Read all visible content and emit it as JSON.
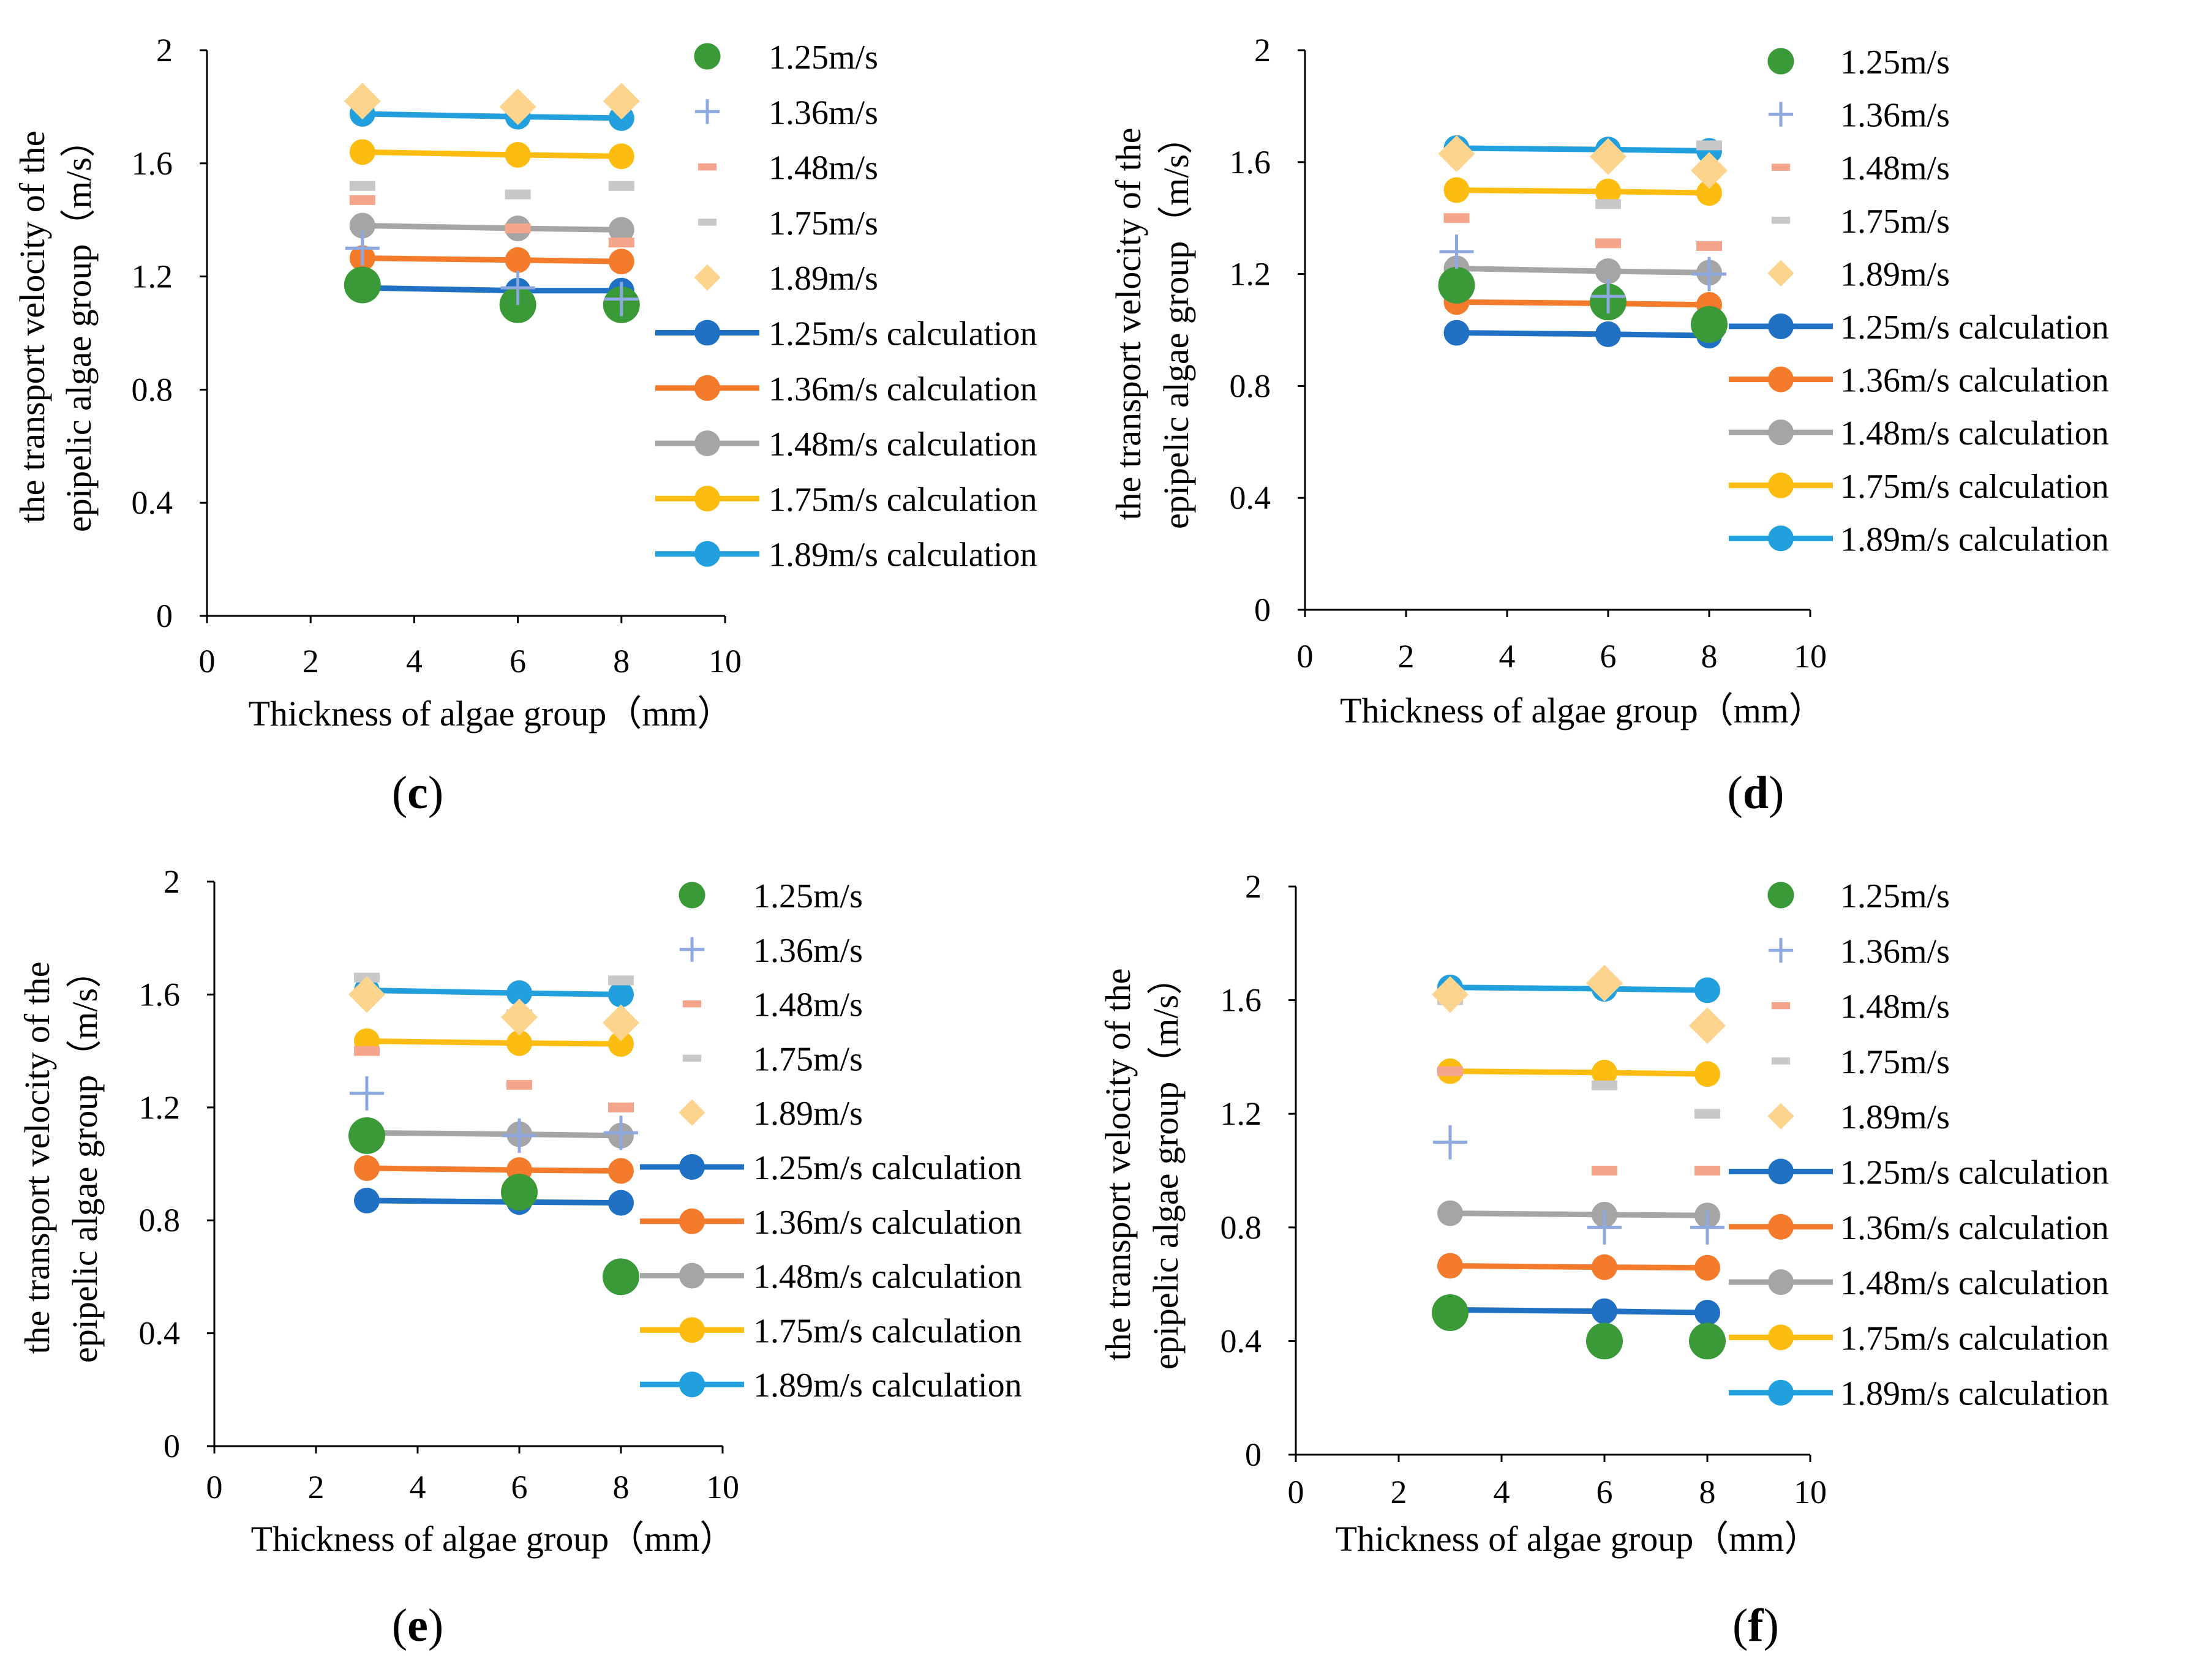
{
  "figure": {
    "panel_labels": [
      "(c)",
      "(d)",
      "(e)",
      "(f)"
    ]
  },
  "colors": {
    "1.25m/s": "#3a9a37",
    "1.36m/s": "#8ea8e0",
    "1.48m/s": "#f5a58b",
    "1.75m/s": "#c8c8c8",
    "1.89m/s": "#fdd48d",
    "1.25m/s calculation": "#2070c4",
    "1.36m/s calculation": "#f47b2b",
    "1.48m/s calculation": "#a5a5a5",
    "1.75m/s calculation": "#fdbd10",
    "1.89m/s calculation": "#22a0de",
    "axis": "#000000"
  },
  "chart_data": [
    {
      "panel": "(c)",
      "type": "scatter",
      "xlabel": "Thickness of algae group（mm）",
      "ylabel_line1": "the transport velocity of the",
      "ylabel_line2": "epipelic algae group（m/s）",
      "xlim": [
        0,
        10
      ],
      "ylim": [
        0,
        2
      ],
      "xticks": [
        "0",
        "2",
        "4",
        "6",
        "8",
        "10"
      ],
      "yticks": [
        "0",
        "0.4",
        "0.8",
        "1.2",
        "1.6",
        "2"
      ],
      "legend": [
        "1.25m/s",
        "1.36m/s",
        "1.48m/s",
        "1.75m/s",
        "1.89m/s",
        "1.25m/s calculation",
        "1.36m/s calculation",
        "1.48m/s calculation",
        "1.75m/s calculation",
        "1.89m/s calculation"
      ],
      "legend_position": "right",
      "x": [
        3,
        6,
        8
      ],
      "series": [
        {
          "name": "1.25m/s",
          "marker": "circle",
          "values": [
            1.17,
            1.1,
            1.1
          ]
        },
        {
          "name": "1.36m/s",
          "marker": "plus",
          "values": [
            1.3,
            1.16,
            1.12
          ]
        },
        {
          "name": "1.48m/s",
          "marker": "dash",
          "values": [
            1.47,
            1.37,
            1.32
          ]
        },
        {
          "name": "1.75m/s",
          "marker": "dash",
          "values": [
            1.52,
            1.49,
            1.52
          ]
        },
        {
          "name": "1.89m/s",
          "marker": "diamond",
          "values": [
            1.82,
            1.8,
            1.82
          ]
        },
        {
          "name": "1.25m/s calculation",
          "marker": "line",
          "values": [
            1.16,
            1.15,
            1.15
          ]
        },
        {
          "name": "1.36m/s calculation",
          "marker": "line",
          "values": [
            1.265,
            1.258,
            1.253
          ]
        },
        {
          "name": "1.48m/s calculation",
          "marker": "line",
          "values": [
            1.38,
            1.37,
            1.365
          ]
        },
        {
          "name": "1.75m/s calculation",
          "marker": "line",
          "values": [
            1.64,
            1.63,
            1.625
          ]
        },
        {
          "name": "1.89m/s calculation",
          "marker": "line",
          "values": [
            1.775,
            1.765,
            1.76
          ]
        }
      ]
    },
    {
      "panel": "(d)",
      "type": "scatter",
      "xlabel": "Thickness of algae group（mm）",
      "ylabel_line1": "the transport velocity of the",
      "ylabel_line2": "epipelic algae group（m/s）",
      "xlim": [
        0,
        10
      ],
      "ylim": [
        0,
        2
      ],
      "xticks": [
        "0",
        "2",
        "4",
        "6",
        "8",
        "10"
      ],
      "yticks": [
        "0",
        "0.4",
        "0.8",
        "1.2",
        "1.6",
        "2"
      ],
      "legend": [
        "1.25m/s",
        "1.36m/s",
        "1.48m/s",
        "1.75m/s",
        "1.89m/s",
        "1.25m/s calculation",
        "1.36m/s calculation",
        "1.48m/s calculation",
        "1.75m/s calculation",
        "1.89m/s calculation"
      ],
      "legend_position": "right",
      "x": [
        3,
        6,
        8
      ],
      "series": [
        {
          "name": "1.25m/s",
          "marker": "circle",
          "values": [
            1.16,
            1.1,
            1.02
          ]
        },
        {
          "name": "1.36m/s",
          "marker": "plus",
          "values": [
            1.28,
            1.12,
            1.2
          ]
        },
        {
          "name": "1.48m/s",
          "marker": "dash",
          "values": [
            1.4,
            1.31,
            1.3
          ]
        },
        {
          "name": "1.75m/s",
          "marker": "dash",
          "values": [
            1.63,
            1.45,
            1.66
          ]
        },
        {
          "name": "1.89m/s",
          "marker": "diamond",
          "values": [
            1.63,
            1.62,
            1.57
          ]
        },
        {
          "name": "1.25m/s calculation",
          "marker": "line",
          "values": [
            0.99,
            0.985,
            0.98
          ]
        },
        {
          "name": "1.36m/s calculation",
          "marker": "line",
          "values": [
            1.1,
            1.095,
            1.09
          ]
        },
        {
          "name": "1.48m/s calculation",
          "marker": "line",
          "values": [
            1.22,
            1.21,
            1.205
          ]
        },
        {
          "name": "1.75m/s calculation",
          "marker": "line",
          "values": [
            1.5,
            1.495,
            1.49
          ]
        },
        {
          "name": "1.89m/s calculation",
          "marker": "line",
          "values": [
            1.65,
            1.645,
            1.64
          ]
        }
      ]
    },
    {
      "panel": "(e)",
      "type": "scatter",
      "xlabel": "Thickness of algae group（mm）",
      "ylabel_line1": "the transport velocity of the",
      "ylabel_line2": "epipelic algae group（m/s）",
      "xlim": [
        0,
        10
      ],
      "ylim": [
        0,
        2
      ],
      "xticks": [
        "0",
        "2",
        "4",
        "6",
        "8",
        "10"
      ],
      "yticks": [
        "0",
        "0.4",
        "0.8",
        "1.2",
        "1.6",
        "2"
      ],
      "legend": [
        "1.25m/s",
        "1.36m/s",
        "1.48m/s",
        "1.75m/s",
        "1.89m/s",
        "1.25m/s calculation",
        "1.36m/s calculation",
        "1.48m/s calculation",
        "1.75m/s calculation",
        "1.89m/s calculation"
      ],
      "legend_position": "right",
      "x": [
        3,
        6,
        8
      ],
      "series": [
        {
          "name": "1.25m/s",
          "marker": "circle",
          "values": [
            1.1,
            0.9,
            0.6
          ]
        },
        {
          "name": "1.36m/s",
          "marker": "plus",
          "values": [
            1.25,
            1.1,
            1.11
          ]
        },
        {
          "name": "1.48m/s",
          "marker": "dash",
          "values": [
            1.4,
            1.28,
            1.2
          ]
        },
        {
          "name": "1.75m/s",
          "marker": "dash",
          "values": [
            1.66,
            1.53,
            1.65
          ]
        },
        {
          "name": "1.89m/s",
          "marker": "diamond",
          "values": [
            1.6,
            1.52,
            1.5
          ]
        },
        {
          "name": "1.25m/s calculation",
          "marker": "line",
          "values": [
            0.87,
            0.865,
            0.862
          ]
        },
        {
          "name": "1.36m/s calculation",
          "marker": "line",
          "values": [
            0.985,
            0.978,
            0.975
          ]
        },
        {
          "name": "1.48m/s calculation",
          "marker": "line",
          "values": [
            1.11,
            1.105,
            1.1
          ]
        },
        {
          "name": "1.75m/s calculation",
          "marker": "line",
          "values": [
            1.435,
            1.428,
            1.425
          ]
        },
        {
          "name": "1.89m/s calculation",
          "marker": "line",
          "values": [
            1.615,
            1.605,
            1.6
          ]
        }
      ]
    },
    {
      "panel": "(f)",
      "type": "scatter",
      "xlabel": "Thickness of algae group（mm）",
      "ylabel_line1": "the transport velocity of the",
      "ylabel_line2": "epipelic algae group（m/s）",
      "xlim": [
        0,
        10
      ],
      "ylim": [
        0,
        2
      ],
      "xticks": [
        "0",
        "2",
        "4",
        "6",
        "8",
        "10"
      ],
      "yticks": [
        "0",
        "0.4",
        "0.8",
        "1.2",
        "1.6",
        "2"
      ],
      "legend": [
        "1.25m/s",
        "1.36m/s",
        "1.48m/s",
        "1.75m/s",
        "1.89m/s",
        "1.25m/s calculation",
        "1.36m/s calculation",
        "1.48m/s calculation",
        "1.75m/s calculation",
        "1.89m/s calculation"
      ],
      "legend_position": "right",
      "x": [
        3,
        6,
        8
      ],
      "series": [
        {
          "name": "1.25m/s",
          "marker": "circle",
          "values": [
            0.5,
            0.4,
            0.4
          ]
        },
        {
          "name": "1.36m/s",
          "marker": "plus",
          "values": [
            1.1,
            0.8,
            0.8
          ]
        },
        {
          "name": "1.48m/s",
          "marker": "dash",
          "values": [
            1.35,
            1.0,
            1.0
          ]
        },
        {
          "name": "1.75m/s",
          "marker": "dash",
          "values": [
            1.6,
            1.3,
            1.2
          ]
        },
        {
          "name": "1.89m/s",
          "marker": "diamond",
          "values": [
            1.62,
            1.66,
            1.51
          ]
        },
        {
          "name": "1.25m/s calculation",
          "marker": "line",
          "values": [
            0.51,
            0.505,
            0.5
          ]
        },
        {
          "name": "1.36m/s calculation",
          "marker": "line",
          "values": [
            0.665,
            0.66,
            0.658
          ]
        },
        {
          "name": "1.48m/s calculation",
          "marker": "line",
          "values": [
            0.85,
            0.845,
            0.842
          ]
        },
        {
          "name": "1.75m/s calculation",
          "marker": "line",
          "values": [
            1.35,
            1.345,
            1.34
          ]
        },
        {
          "name": "1.89m/s calculation",
          "marker": "line",
          "values": [
            1.645,
            1.64,
            1.635
          ]
        }
      ]
    }
  ]
}
